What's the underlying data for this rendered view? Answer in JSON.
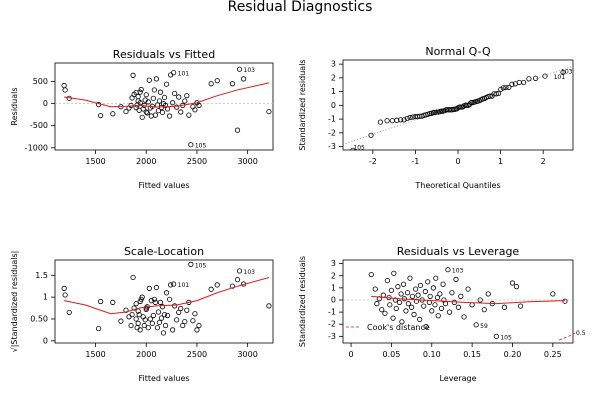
{
  "title": "Residual Diagnostics",
  "colors": {
    "points": "#000000",
    "smoother": "#e31a1c",
    "reference": "#bbbbbb",
    "cooks": "#e31a1c"
  },
  "chart_data": [
    {
      "type": "scatter",
      "title": "Residuals vs Fitted",
      "xlabel": "Fitted values",
      "ylabel": "Residuals",
      "xlim": [
        1100,
        3250
      ],
      "ylim": [
        -1050,
        920
      ],
      "xticks": [
        1500,
        2000,
        2500,
        3000
      ],
      "yticks": [
        -1000,
        -500,
        0,
        500
      ],
      "hline": 0,
      "annotations": [
        {
          "x": 2270,
          "y": 700,
          "label": "101"
        },
        {
          "x": 2920,
          "y": 780,
          "label": "103"
        },
        {
          "x": 2440,
          "y": -930,
          "label": "105"
        }
      ],
      "points": [
        [
          1190,
          410
        ],
        [
          1200,
          310
        ],
        [
          1240,
          120
        ],
        [
          1530,
          -20
        ],
        [
          1550,
          -270
        ],
        [
          1670,
          -230
        ],
        [
          1750,
          -70
        ],
        [
          1800,
          -180
        ],
        [
          1830,
          -100
        ],
        [
          1850,
          -40
        ],
        [
          1860,
          130
        ],
        [
          1870,
          640
        ],
        [
          1880,
          210
        ],
        [
          1900,
          250
        ],
        [
          1900,
          -90
        ],
        [
          1910,
          -30
        ],
        [
          1920,
          160
        ],
        [
          1920,
          60
        ],
        [
          1930,
          -150
        ],
        [
          1940,
          20
        ],
        [
          1940,
          260
        ],
        [
          1950,
          320
        ],
        [
          1960,
          -310
        ],
        [
          1970,
          -120
        ],
        [
          1980,
          -40
        ],
        [
          1990,
          80
        ],
        [
          2000,
          -190
        ],
        [
          2000,
          200
        ],
        [
          2010,
          -210
        ],
        [
          2020,
          40
        ],
        [
          2030,
          530
        ],
        [
          2040,
          -100
        ],
        [
          2050,
          -280
        ],
        [
          2060,
          -60
        ],
        [
          2070,
          120
        ],
        [
          2080,
          310
        ],
        [
          2090,
          -260
        ],
        [
          2100,
          560
        ],
        [
          2110,
          -30
        ],
        [
          2120,
          -160
        ],
        [
          2130,
          60
        ],
        [
          2140,
          260
        ],
        [
          2150,
          -90
        ],
        [
          2160,
          -200
        ],
        [
          2170,
          0
        ],
        [
          2180,
          140
        ],
        [
          2190,
          -40
        ],
        [
          2200,
          440
        ],
        [
          2210,
          -120
        ],
        [
          2230,
          -280
        ],
        [
          2240,
          650
        ],
        [
          2260,
          20
        ],
        [
          2270,
          700
        ],
        [
          2280,
          230
        ],
        [
          2300,
          -80
        ],
        [
          2320,
          150
        ],
        [
          2340,
          -190
        ],
        [
          2360,
          -40
        ],
        [
          2380,
          60
        ],
        [
          2400,
          180
        ],
        [
          2420,
          -260
        ],
        [
          2440,
          -930
        ],
        [
          2460,
          -70
        ],
        [
          2480,
          -140
        ],
        [
          2500,
          20
        ],
        [
          2520,
          -40
        ],
        [
          2640,
          450
        ],
        [
          2700,
          520
        ],
        [
          2850,
          450
        ],
        [
          2900,
          -600
        ],
        [
          2920,
          780
        ],
        [
          2960,
          560
        ],
        [
          3210,
          -180
        ]
      ],
      "smoother": [
        [
          1190,
          150
        ],
        [
          1400,
          80
        ],
        [
          1650,
          -70
        ],
        [
          1800,
          -60
        ],
        [
          1950,
          -40
        ],
        [
          2100,
          -80
        ],
        [
          2300,
          -60
        ],
        [
          2500,
          20
        ],
        [
          2700,
          180
        ],
        [
          2900,
          310
        ],
        [
          3210,
          470
        ]
      ]
    },
    {
      "type": "scatter",
      "title": "Normal Q-Q",
      "xlabel": "Theoretical Quantiles",
      "ylabel": "Standardized residuals",
      "xlim": [
        -2.7,
        2.7
      ],
      "ylim": [
        -3.25,
        3.3
      ],
      "xticks": [
        -2,
        -1,
        0,
        1,
        2
      ],
      "yticks": [
        -3,
        -2,
        -1,
        0,
        1,
        2,
        3
      ],
      "reference_line": [
        [
          -2.7,
          -2.85
        ],
        [
          2.7,
          2.85
        ]
      ],
      "annotations": [
        {
          "x": -2.55,
          "y": -3.0,
          "label": "105"
        },
        {
          "x": 2.15,
          "y": 2.15,
          "label": "101"
        },
        {
          "x": 2.55,
          "y": 2.55,
          "label": "103"
        }
      ]
    },
    {
      "type": "scatter",
      "title": "Scale-Location",
      "xlabel": "Fitted values",
      "ylabel": "√|Standardized residuals|",
      "xlim": [
        1100,
        3250
      ],
      "ylim": [
        -0.05,
        1.85
      ],
      "xticks": [
        1500,
        2000,
        2500,
        3000
      ],
      "yticks": [
        0.0,
        0.5,
        1.0,
        1.5
      ],
      "annotations": [
        {
          "x": 2270,
          "y": 1.3,
          "label": "101"
        },
        {
          "x": 2920,
          "y": 1.6,
          "label": "103"
        },
        {
          "x": 2440,
          "y": 1.75,
          "label": "105"
        }
      ],
      "points": [
        [
          1190,
          1.2
        ],
        [
          1200,
          1.05
        ],
        [
          1240,
          0.65
        ],
        [
          1530,
          0.28
        ],
        [
          1550,
          0.9
        ],
        [
          1670,
          0.88
        ],
        [
          1750,
          0.45
        ],
        [
          1800,
          0.7
        ],
        [
          1830,
          0.55
        ],
        [
          1850,
          0.35
        ],
        [
          1860,
          0.6
        ],
        [
          1870,
          1.45
        ],
        [
          1880,
          0.75
        ],
        [
          1900,
          0.85
        ],
        [
          1900,
          0.5
        ],
        [
          1910,
          0.3
        ],
        [
          1920,
          0.68
        ],
        [
          1920,
          0.4
        ],
        [
          1930,
          0.6
        ],
        [
          1940,
          0.25
        ],
        [
          1940,
          0.9
        ],
        [
          1950,
          0.95
        ],
        [
          1960,
          1.0
        ],
        [
          1970,
          0.55
        ],
        [
          1980,
          0.35
        ],
        [
          1990,
          0.48
        ],
        [
          2000,
          0.75
        ],
        [
          2000,
          0.72
        ],
        [
          2010,
          0.78
        ],
        [
          2020,
          0.3
        ],
        [
          2030,
          1.2
        ],
        [
          2040,
          0.5
        ],
        [
          2050,
          0.92
        ],
        [
          2060,
          0.4
        ],
        [
          2070,
          0.58
        ],
        [
          2080,
          0.95
        ],
        [
          2090,
          0.88
        ],
        [
          2100,
          1.22
        ],
        [
          2110,
          0.3
        ],
        [
          2120,
          0.66
        ],
        [
          2130,
          0.42
        ],
        [
          2140,
          0.88
        ],
        [
          2150,
          0.52
        ],
        [
          2160,
          0.78
        ],
        [
          2170,
          0.18
        ],
        [
          2180,
          0.6
        ],
        [
          2190,
          0.35
        ],
        [
          2200,
          1.1
        ],
        [
          2210,
          0.58
        ],
        [
          2230,
          0.95
        ],
        [
          2240,
          1.28
        ],
        [
          2260,
          0.25
        ],
        [
          2270,
          1.3
        ],
        [
          2280,
          0.8
        ],
        [
          2300,
          0.48
        ],
        [
          2320,
          0.65
        ],
        [
          2340,
          0.74
        ],
        [
          2360,
          0.35
        ],
        [
          2380,
          0.44
        ],
        [
          2400,
          0.7
        ],
        [
          2420,
          0.88
        ],
        [
          2440,
          1.75
        ],
        [
          2460,
          0.46
        ],
        [
          2480,
          0.62
        ],
        [
          2500,
          0.25
        ],
        [
          2520,
          0.35
        ],
        [
          2640,
          1.18
        ],
        [
          2700,
          1.28
        ],
        [
          2850,
          1.25
        ],
        [
          2900,
          1.4
        ],
        [
          2920,
          1.6
        ],
        [
          2960,
          1.3
        ],
        [
          3210,
          0.8
        ]
      ],
      "smoother": [
        [
          1190,
          0.92
        ],
        [
          1400,
          0.82
        ],
        [
          1650,
          0.62
        ],
        [
          1800,
          0.66
        ],
        [
          1950,
          0.76
        ],
        [
          2100,
          0.8
        ],
        [
          2300,
          0.82
        ],
        [
          2500,
          0.92
        ],
        [
          2700,
          1.1
        ],
        [
          2900,
          1.25
        ],
        [
          3210,
          1.45
        ]
      ]
    },
    {
      "type": "scatter",
      "title": "Residuals vs Leverage",
      "xlabel": "Leverage",
      "ylabel": "Standardized residuals",
      "xlim": [
        -0.01,
        0.275
      ],
      "ylim": [
        -3.55,
        3.3
      ],
      "xticks": [
        0.0,
        0.05,
        0.1,
        0.15,
        0.2,
        0.25
      ],
      "yticks": [
        -3,
        -2,
        -1,
        0,
        1,
        2,
        3
      ],
      "hline": 0,
      "legend": {
        "label": "Cook's distance",
        "position": "bottom-left"
      },
      "cooks_label": "0.5",
      "annotations": [
        {
          "x": 0.12,
          "y": 2.5,
          "label": "103"
        },
        {
          "x": 0.155,
          "y": -2.05,
          "label": "59"
        },
        {
          "x": 0.18,
          "y": -3.0,
          "label": "105"
        }
      ],
      "points": [
        [
          0.025,
          2.1
        ],
        [
          0.03,
          0.9
        ],
        [
          0.032,
          -0.3
        ],
        [
          0.035,
          0.1
        ],
        [
          0.038,
          -0.8
        ],
        [
          0.04,
          0.4
        ],
        [
          0.042,
          -1.1
        ],
        [
          0.045,
          1.6
        ],
        [
          0.047,
          0.2
        ],
        [
          0.048,
          -0.4
        ],
        [
          0.05,
          0.8
        ],
        [
          0.052,
          -1.5
        ],
        [
          0.053,
          2.2
        ],
        [
          0.055,
          0.0
        ],
        [
          0.056,
          -0.7
        ],
        [
          0.058,
          1.1
        ],
        [
          0.06,
          -0.2
        ],
        [
          0.062,
          0.5
        ],
        [
          0.063,
          -1.8
        ],
        [
          0.065,
          1.3
        ],
        [
          0.066,
          0.1
        ],
        [
          0.068,
          -0.9
        ],
        [
          0.07,
          0.6
        ],
        [
          0.071,
          -0.3
        ],
        [
          0.073,
          1.8
        ],
        [
          0.075,
          -0.6
        ],
        [
          0.076,
          0.3
        ],
        [
          0.078,
          -1.2
        ],
        [
          0.08,
          0.9
        ],
        [
          0.081,
          -0.1
        ],
        [
          0.083,
          0.4
        ],
        [
          0.085,
          -1.6
        ],
        [
          0.086,
          1.2
        ],
        [
          0.088,
          0.0
        ],
        [
          0.09,
          -0.5
        ],
        [
          0.092,
          0.7
        ],
        [
          0.093,
          -2.2
        ],
        [
          0.095,
          1.5
        ],
        [
          0.097,
          -0.2
        ],
        [
          0.098,
          0.3
        ],
        [
          0.1,
          -0.9
        ],
        [
          0.102,
          1.0
        ],
        [
          0.104,
          -0.4
        ],
        [
          0.105,
          1.8
        ],
        [
          0.107,
          0.2
        ],
        [
          0.108,
          -1.3
        ],
        [
          0.11,
          0.5
        ],
        [
          0.112,
          -0.7
        ],
        [
          0.114,
          1.3
        ],
        [
          0.115,
          0.0
        ],
        [
          0.117,
          -0.3
        ],
        [
          0.12,
          2.5
        ],
        [
          0.122,
          -1.0
        ],
        [
          0.125,
          0.6
        ],
        [
          0.128,
          -0.2
        ],
        [
          0.13,
          1.7
        ],
        [
          0.133,
          -0.6
        ],
        [
          0.136,
          0.3
        ],
        [
          0.14,
          -1.4
        ],
        [
          0.145,
          0.9
        ],
        [
          0.15,
          -0.4
        ],
        [
          0.155,
          -2.05
        ],
        [
          0.16,
          0.0
        ],
        [
          0.165,
          -0.8
        ],
        [
          0.17,
          0.5
        ],
        [
          0.175,
          -0.3
        ],
        [
          0.18,
          -3.0
        ],
        [
          0.19,
          -0.6
        ],
        [
          0.2,
          1.4
        ],
        [
          0.205,
          1.1
        ],
        [
          0.21,
          -0.5
        ],
        [
          0.25,
          0.5
        ],
        [
          0.265,
          -0.1
        ]
      ],
      "smoother": [
        [
          0.025,
          0.3
        ],
        [
          0.06,
          0.1
        ],
        [
          0.1,
          -0.05
        ],
        [
          0.14,
          -0.2
        ],
        [
          0.18,
          -0.3
        ],
        [
          0.22,
          -0.15
        ],
        [
          0.265,
          -0.05
        ]
      ]
    }
  ]
}
